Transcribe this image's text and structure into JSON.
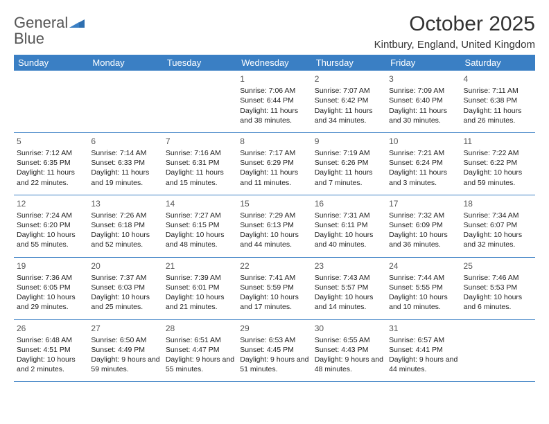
{
  "logo": {
    "text_gray": "General",
    "text_blue": "Blue"
  },
  "title": "October 2025",
  "location": "Kintbury, England, United Kingdom",
  "colors": {
    "header_bg": "#3a7fc4",
    "header_text": "#ffffff",
    "text": "#222222",
    "daynum": "#555555",
    "border": "#3a7fc4",
    "logo_gray": "#666666",
    "logo_blue": "#3a7fc4",
    "background": "#ffffff"
  },
  "fonts": {
    "title_size": 30,
    "location_size": 15,
    "weekday_size": 13,
    "daynum_size": 12,
    "cell_size": 10.5,
    "logo_size": 22
  },
  "weekdays": [
    "Sunday",
    "Monday",
    "Tuesday",
    "Wednesday",
    "Thursday",
    "Friday",
    "Saturday"
  ],
  "weeks": [
    [
      null,
      null,
      null,
      {
        "n": "1",
        "sr": "Sunrise: 7:06 AM",
        "ss": "Sunset: 6:44 PM",
        "dl": "Daylight: 11 hours and 38 minutes."
      },
      {
        "n": "2",
        "sr": "Sunrise: 7:07 AM",
        "ss": "Sunset: 6:42 PM",
        "dl": "Daylight: 11 hours and 34 minutes."
      },
      {
        "n": "3",
        "sr": "Sunrise: 7:09 AM",
        "ss": "Sunset: 6:40 PM",
        "dl": "Daylight: 11 hours and 30 minutes."
      },
      {
        "n": "4",
        "sr": "Sunrise: 7:11 AM",
        "ss": "Sunset: 6:38 PM",
        "dl": "Daylight: 11 hours and 26 minutes."
      }
    ],
    [
      {
        "n": "5",
        "sr": "Sunrise: 7:12 AM",
        "ss": "Sunset: 6:35 PM",
        "dl": "Daylight: 11 hours and 22 minutes."
      },
      {
        "n": "6",
        "sr": "Sunrise: 7:14 AM",
        "ss": "Sunset: 6:33 PM",
        "dl": "Daylight: 11 hours and 19 minutes."
      },
      {
        "n": "7",
        "sr": "Sunrise: 7:16 AM",
        "ss": "Sunset: 6:31 PM",
        "dl": "Daylight: 11 hours and 15 minutes."
      },
      {
        "n": "8",
        "sr": "Sunrise: 7:17 AM",
        "ss": "Sunset: 6:29 PM",
        "dl": "Daylight: 11 hours and 11 minutes."
      },
      {
        "n": "9",
        "sr": "Sunrise: 7:19 AM",
        "ss": "Sunset: 6:26 PM",
        "dl": "Daylight: 11 hours and 7 minutes."
      },
      {
        "n": "10",
        "sr": "Sunrise: 7:21 AM",
        "ss": "Sunset: 6:24 PM",
        "dl": "Daylight: 11 hours and 3 minutes."
      },
      {
        "n": "11",
        "sr": "Sunrise: 7:22 AM",
        "ss": "Sunset: 6:22 PM",
        "dl": "Daylight: 10 hours and 59 minutes."
      }
    ],
    [
      {
        "n": "12",
        "sr": "Sunrise: 7:24 AM",
        "ss": "Sunset: 6:20 PM",
        "dl": "Daylight: 10 hours and 55 minutes."
      },
      {
        "n": "13",
        "sr": "Sunrise: 7:26 AM",
        "ss": "Sunset: 6:18 PM",
        "dl": "Daylight: 10 hours and 52 minutes."
      },
      {
        "n": "14",
        "sr": "Sunrise: 7:27 AM",
        "ss": "Sunset: 6:15 PM",
        "dl": "Daylight: 10 hours and 48 minutes."
      },
      {
        "n": "15",
        "sr": "Sunrise: 7:29 AM",
        "ss": "Sunset: 6:13 PM",
        "dl": "Daylight: 10 hours and 44 minutes."
      },
      {
        "n": "16",
        "sr": "Sunrise: 7:31 AM",
        "ss": "Sunset: 6:11 PM",
        "dl": "Daylight: 10 hours and 40 minutes."
      },
      {
        "n": "17",
        "sr": "Sunrise: 7:32 AM",
        "ss": "Sunset: 6:09 PM",
        "dl": "Daylight: 10 hours and 36 minutes."
      },
      {
        "n": "18",
        "sr": "Sunrise: 7:34 AM",
        "ss": "Sunset: 6:07 PM",
        "dl": "Daylight: 10 hours and 32 minutes."
      }
    ],
    [
      {
        "n": "19",
        "sr": "Sunrise: 7:36 AM",
        "ss": "Sunset: 6:05 PM",
        "dl": "Daylight: 10 hours and 29 minutes."
      },
      {
        "n": "20",
        "sr": "Sunrise: 7:37 AM",
        "ss": "Sunset: 6:03 PM",
        "dl": "Daylight: 10 hours and 25 minutes."
      },
      {
        "n": "21",
        "sr": "Sunrise: 7:39 AM",
        "ss": "Sunset: 6:01 PM",
        "dl": "Daylight: 10 hours and 21 minutes."
      },
      {
        "n": "22",
        "sr": "Sunrise: 7:41 AM",
        "ss": "Sunset: 5:59 PM",
        "dl": "Daylight: 10 hours and 17 minutes."
      },
      {
        "n": "23",
        "sr": "Sunrise: 7:43 AM",
        "ss": "Sunset: 5:57 PM",
        "dl": "Daylight: 10 hours and 14 minutes."
      },
      {
        "n": "24",
        "sr": "Sunrise: 7:44 AM",
        "ss": "Sunset: 5:55 PM",
        "dl": "Daylight: 10 hours and 10 minutes."
      },
      {
        "n": "25",
        "sr": "Sunrise: 7:46 AM",
        "ss": "Sunset: 5:53 PM",
        "dl": "Daylight: 10 hours and 6 minutes."
      }
    ],
    [
      {
        "n": "26",
        "sr": "Sunrise: 6:48 AM",
        "ss": "Sunset: 4:51 PM",
        "dl": "Daylight: 10 hours and 2 minutes."
      },
      {
        "n": "27",
        "sr": "Sunrise: 6:50 AM",
        "ss": "Sunset: 4:49 PM",
        "dl": "Daylight: 9 hours and 59 minutes."
      },
      {
        "n": "28",
        "sr": "Sunrise: 6:51 AM",
        "ss": "Sunset: 4:47 PM",
        "dl": "Daylight: 9 hours and 55 minutes."
      },
      {
        "n": "29",
        "sr": "Sunrise: 6:53 AM",
        "ss": "Sunset: 4:45 PM",
        "dl": "Daylight: 9 hours and 51 minutes."
      },
      {
        "n": "30",
        "sr": "Sunrise: 6:55 AM",
        "ss": "Sunset: 4:43 PM",
        "dl": "Daylight: 9 hours and 48 minutes."
      },
      {
        "n": "31",
        "sr": "Sunrise: 6:57 AM",
        "ss": "Sunset: 4:41 PM",
        "dl": "Daylight: 9 hours and 44 minutes."
      },
      null
    ]
  ]
}
